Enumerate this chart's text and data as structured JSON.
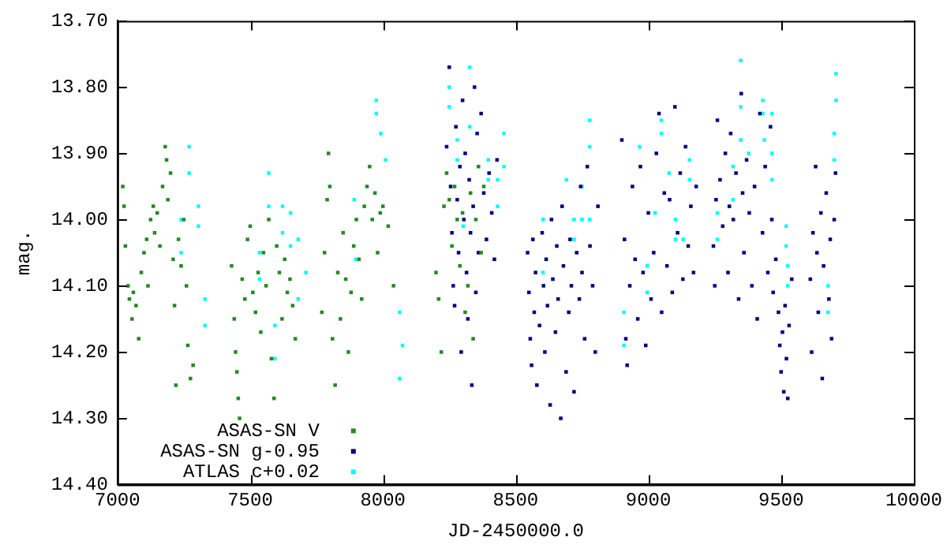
{
  "chart_data": {
    "type": "scatter",
    "xlabel": "JD-2450000.0",
    "ylabel": "mag.",
    "xlim": [
      7000,
      10000
    ],
    "xticks": [
      7000,
      7500,
      8000,
      8500,
      9000,
      9500,
      10000
    ],
    "ylim": [
      14.4,
      13.7
    ],
    "yticks": [
      {
        "value": 14.4,
        "label": "14.40"
      },
      {
        "value": 14.3,
        "label": "14.30"
      },
      {
        "value": 14.2,
        "label": "14.20"
      },
      {
        "value": 14.1,
        "label": "14.10"
      },
      {
        "value": 14.0,
        "label": "14.00"
      },
      {
        "value": 13.9,
        "label": "13.90"
      },
      {
        "value": 13.8,
        "label": "13.80"
      },
      {
        "value": 13.7,
        "label": "13.70"
      }
    ],
    "grid": false,
    "legend": "bottom left",
    "marker": "square",
    "series": [
      {
        "name": "ASAS-SN V",
        "color": "#228b22",
        "x": [
          7020,
          7025,
          7030,
          7040,
          7045,
          7055,
          7060,
          7070,
          7080,
          7090,
          7100,
          7110,
          7115,
          7125,
          7135,
          7140,
          7150,
          7160,
          7170,
          7180,
          7185,
          7190,
          7200,
          7210,
          7215,
          7220,
          7230,
          7240,
          7250,
          7260,
          7265,
          7275,
          7285,
          7430,
          7440,
          7445,
          7450,
          7455,
          7460,
          7470,
          7480,
          7490,
          7500,
          7510,
          7520,
          7530,
          7540,
          7550,
          7560,
          7570,
          7580,
          7590,
          7600,
          7610,
          7620,
          7630,
          7640,
          7650,
          7660,
          7670,
          7770,
          7780,
          7790,
          7795,
          7800,
          7810,
          7820,
          7830,
          7840,
          7850,
          7860,
          7870,
          7880,
          7890,
          7900,
          7910,
          7920,
          7930,
          7940,
          7950,
          7960,
          7970,
          7980,
          7990,
          8000,
          8020,
          8040,
          8200,
          8210,
          8220,
          8230,
          8240,
          8250,
          8260,
          8270,
          8280,
          8290,
          8300,
          8310,
          8320,
          8330,
          8340,
          8350,
          8360,
          8370,
          8380
        ],
        "values": [
          13.95,
          13.98,
          14.04,
          14.1,
          14.12,
          14.15,
          14.11,
          14.13,
          14.18,
          14.08,
          14.05,
          14.03,
          14.1,
          14.0,
          13.98,
          14.02,
          13.99,
          14.04,
          13.95,
          13.89,
          13.91,
          13.97,
          13.93,
          14.06,
          14.13,
          14.25,
          14.03,
          14.07,
          14.0,
          14.1,
          14.19,
          14.24,
          14.22,
          14.07,
          14.15,
          14.2,
          14.23,
          14.27,
          14.3,
          14.09,
          14.12,
          14.03,
          14.01,
          14.11,
          14.14,
          14.08,
          14.17,
          14.05,
          14.1,
          14.0,
          14.21,
          14.27,
          14.04,
          14.08,
          14.15,
          14.06,
          14.11,
          14.09,
          14.13,
          14.18,
          14.14,
          14.05,
          13.97,
          13.9,
          13.95,
          14.18,
          14.25,
          14.08,
          14.15,
          14.02,
          14.09,
          14.2,
          14.11,
          14.04,
          14.0,
          14.06,
          14.12,
          13.98,
          13.95,
          13.92,
          14.0,
          13.96,
          14.05,
          13.99,
          13.98,
          14.01,
          14.1,
          14.08,
          14.12,
          14.2,
          13.98,
          13.93,
          13.97,
          14.04,
          13.95,
          14.0,
          14.07,
          13.99,
          14.14,
          14.1,
          13.96,
          14.18,
          14.0,
          13.92,
          14.05,
          13.95
        ]
      },
      {
        "name": "ASAS-SN g-0.95",
        "color": "#000080",
        "x": [
          8240,
          8250,
          8255,
          8260,
          8265,
          8270,
          8275,
          8280,
          8285,
          8290,
          8295,
          8300,
          8305,
          8310,
          8315,
          8320,
          8325,
          8330,
          8335,
          8340,
          8345,
          8350,
          8355,
          8360,
          8370,
          8380,
          8390,
          8400,
          8410,
          8420,
          8430,
          8545,
          8550,
          8555,
          8560,
          8565,
          8570,
          8575,
          8580,
          8590,
          8600,
          8605,
          8610,
          8615,
          8620,
          8630,
          8635,
          8640,
          8650,
          8655,
          8660,
          8670,
          8675,
          8680,
          8690,
          8700,
          8705,
          8710,
          8720,
          8730,
          8740,
          8745,
          8750,
          8760,
          8770,
          8780,
          8790,
          8800,
          8810,
          8900,
          8910,
          8915,
          8920,
          8930,
          8940,
          8950,
          8960,
          8970,
          8980,
          8990,
          9000,
          9010,
          9020,
          9030,
          9040,
          9050,
          9060,
          9070,
          9080,
          9090,
          9100,
          9110,
          9120,
          9130,
          9140,
          9150,
          9160,
          9170,
          9180,
          9245,
          9250,
          9255,
          9260,
          9270,
          9280,
          9290,
          9300,
          9305,
          9310,
          9320,
          9330,
          9340,
          9350,
          9355,
          9360,
          9370,
          9380,
          9390,
          9400,
          9410,
          9420,
          9430,
          9440,
          9450,
          9460,
          9465,
          9470,
          9480,
          9490,
          9495,
          9500,
          9505,
          9510,
          9515,
          9520,
          9525,
          9530,
          9540,
          9610,
          9615,
          9620,
          9630,
          9635,
          9640,
          9650,
          9655,
          9660,
          9670,
          9680,
          9685,
          9690,
          9700,
          9705
        ],
        "values": [
          13.89,
          13.77,
          13.95,
          14.02,
          14.1,
          14.13,
          13.86,
          13.97,
          14.05,
          13.92,
          14.2,
          13.82,
          14.0,
          13.9,
          14.08,
          14.15,
          13.94,
          14.02,
          14.25,
          13.98,
          13.8,
          14.11,
          13.87,
          14.05,
          13.84,
          13.96,
          14.03,
          13.93,
          13.99,
          14.06,
          13.91,
          14.05,
          14.11,
          14.18,
          14.22,
          14.03,
          14.14,
          14.08,
          14.25,
          14.16,
          14.02,
          14.1,
          14.2,
          14.06,
          14.13,
          14.28,
          14.0,
          14.09,
          14.17,
          14.04,
          14.12,
          14.3,
          13.98,
          14.07,
          14.23,
          14.14,
          14.03,
          14.1,
          14.26,
          14.05,
          14.12,
          13.95,
          14.08,
          14.18,
          13.92,
          14.04,
          14.1,
          14.2,
          13.98,
          13.88,
          14.03,
          14.18,
          14.22,
          14.1,
          13.95,
          14.06,
          14.15,
          13.92,
          14.08,
          14.19,
          13.99,
          14.12,
          14.05,
          13.9,
          13.84,
          14.14,
          13.96,
          14.07,
          13.97,
          14.11,
          13.83,
          14.02,
          13.93,
          14.09,
          13.89,
          14.04,
          13.98,
          14.08,
          13.95,
          14.04,
          14.1,
          13.97,
          13.85,
          13.94,
          14.01,
          13.9,
          14.08,
          13.98,
          13.87,
          14.0,
          13.93,
          14.12,
          13.81,
          13.96,
          14.05,
          13.91,
          13.99,
          14.1,
          13.95,
          14.15,
          13.84,
          14.02,
          13.92,
          14.08,
          13.86,
          14.0,
          14.11,
          14.06,
          14.14,
          14.19,
          14.23,
          14.17,
          14.26,
          14.13,
          14.21,
          14.27,
          14.16,
          14.09,
          14.09,
          14.2,
          14.02,
          13.92,
          14.05,
          14.14,
          13.99,
          14.24,
          14.07,
          13.96,
          14.12,
          14.03,
          14.18,
          14.0,
          13.93
        ]
      },
      {
        "name": "ATLAS c+0.02",
        "color": "#00ffff",
        "x": [
          7240,
          7240,
          7270,
          7270,
          7305,
          7305,
          7330,
          7330,
          7535,
          7535,
          7570,
          7570,
          7593,
          7593,
          7622,
          7622,
          7652,
          7652,
          7681,
          7681,
          7710,
          7892,
          7898,
          7975,
          7975,
          7992,
          8010,
          8063,
          8063,
          8074,
          8250,
          8250,
          8280,
          8280,
          8303,
          8327,
          8327,
          8397,
          8397,
          8432,
          8432,
          8456,
          8456,
          8603,
          8603,
          8691,
          8720,
          8720,
          8750,
          8750,
          8779,
          8779,
          8779,
          8908,
          8908,
          8967,
          8996,
          8996,
          9025,
          9049,
          9049,
          9078,
          9102,
          9102,
          9131,
          9155,
          9155,
          9260,
          9260,
          9319,
          9319,
          9348,
          9348,
          9348,
          9378,
          9431,
          9431,
          9437,
          9466,
          9466,
          9466,
          9519,
          9519,
          9525,
          9525,
          9677,
          9677,
          9700,
          9700,
          9707,
          9707
        ],
        "values": [
          14.0,
          14.05,
          13.89,
          13.93,
          13.98,
          14.01,
          14.12,
          14.16,
          14.05,
          14.09,
          13.93,
          13.98,
          14.16,
          14.21,
          13.98,
          14.02,
          13.99,
          14.04,
          14.03,
          14.12,
          14.08,
          13.97,
          14.06,
          13.82,
          13.84,
          13.87,
          13.91,
          14.14,
          14.24,
          14.19,
          13.8,
          13.83,
          13.88,
          13.91,
          14.01,
          13.77,
          13.86,
          13.91,
          13.94,
          13.94,
          13.98,
          13.87,
          13.92,
          14.0,
          14.08,
          13.94,
          14.0,
          14.03,
          13.95,
          14.0,
          13.85,
          13.89,
          14.0,
          14.14,
          14.19,
          13.89,
          14.07,
          14.11,
          13.99,
          13.85,
          13.87,
          13.93,
          14.0,
          14.03,
          14.03,
          13.91,
          13.94,
          13.99,
          14.03,
          13.92,
          13.97,
          13.76,
          13.83,
          13.88,
          13.9,
          13.82,
          13.84,
          13.88,
          13.84,
          13.9,
          13.94,
          14.01,
          14.04,
          14.07,
          14.1,
          14.1,
          14.14,
          13.87,
          13.91,
          13.78,
          13.82
        ]
      }
    ]
  }
}
